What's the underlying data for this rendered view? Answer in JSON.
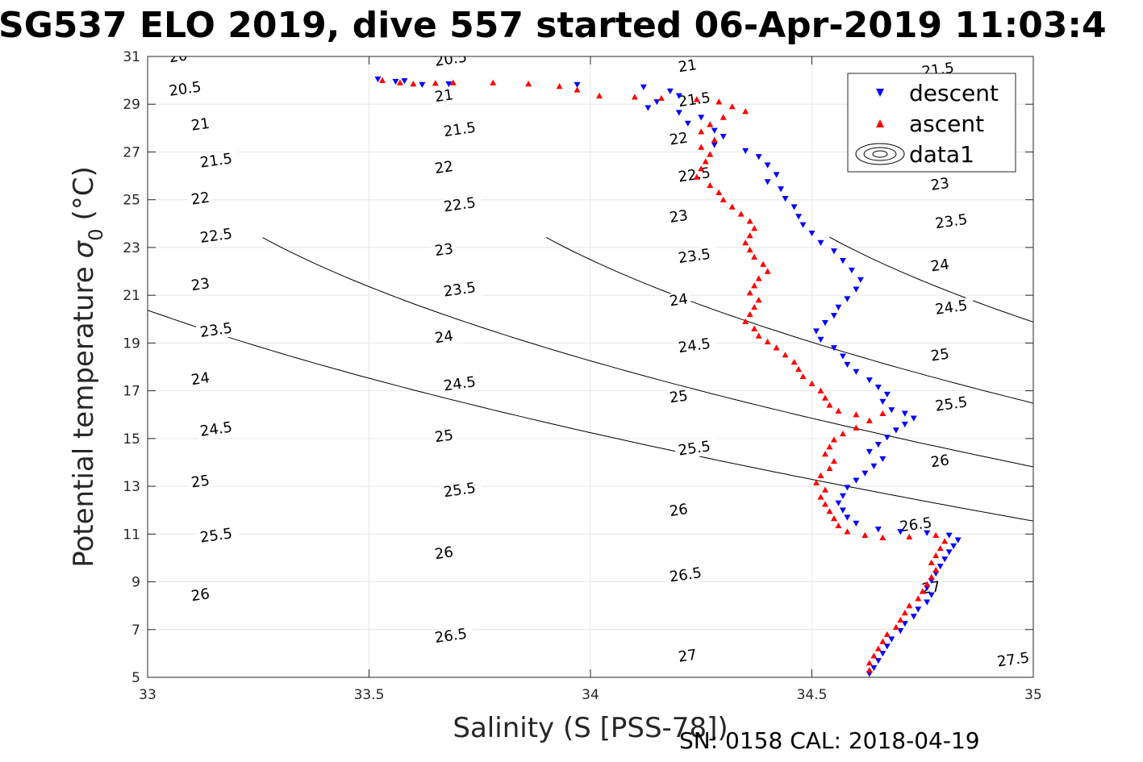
{
  "chart_data": {
    "type": "scatter",
    "title": "SG537 ELO 2019, dive 557 started 06-Apr-2019 11:03:4",
    "xlabel": "Salinity (S [PSS-78])",
    "ylabel": "Potential temperature",
    "ylabel_symbol": "σ",
    "ylabel_subscript": "0",
    "ylabel_unit": "(°C)",
    "xlim": [
      33,
      35
    ],
    "ylim": [
      5,
      31
    ],
    "xticks": [
      "33",
      "33.5",
      "34",
      "34.5",
      "35"
    ],
    "yticks": [
      "5",
      "7",
      "9",
      "11",
      "13",
      "15",
      "17",
      "19",
      "21",
      "23",
      "25",
      "27",
      "29",
      "31"
    ],
    "grid": true,
    "legend_position": "top-right",
    "legend": [
      "descent",
      "ascent",
      "data1"
    ],
    "footer_text": "SN: 0158  CAL: 2018-04-19",
    "colors": {
      "descent": "#0000ff",
      "ascent": "#ff0000",
      "contour": "#000000",
      "grid": "#e6e6e6"
    },
    "density_contours": [
      {
        "level": "20",
        "x": 33.05,
        "y": 30.75
      },
      {
        "level": "20.5",
        "x": 33.05,
        "y": 29.35
      },
      {
        "level": "20.5",
        "x": 33.65,
        "y": 30.6
      },
      {
        "level": "21",
        "x": 33.1,
        "y": 27.9
      },
      {
        "level": "21",
        "x": 33.65,
        "y": 29.1
      },
      {
        "level": "21",
        "x": 34.2,
        "y": 30.35
      },
      {
        "level": "21.5",
        "x": 33.12,
        "y": 26.35
      },
      {
        "level": "21.5",
        "x": 33.67,
        "y": 27.65
      },
      {
        "level": "21.5",
        "x": 34.2,
        "y": 28.9
      },
      {
        "level": "21.5",
        "x": 34.75,
        "y": 30.15
      },
      {
        "level": "22",
        "x": 33.1,
        "y": 24.8
      },
      {
        "level": "22",
        "x": 33.65,
        "y": 26.1
      },
      {
        "level": "22",
        "x": 34.18,
        "y": 27.3
      },
      {
        "level": "22.5",
        "x": 33.12,
        "y": 23.2
      },
      {
        "level": "22.5",
        "x": 33.67,
        "y": 24.5
      },
      {
        "level": "22.5",
        "x": 34.2,
        "y": 25.75
      },
      {
        "level": "23",
        "x": 33.1,
        "y": 21.2
      },
      {
        "level": "23",
        "x": 33.65,
        "y": 22.65
      },
      {
        "level": "23",
        "x": 34.18,
        "y": 24.05
      },
      {
        "level": "23",
        "x": 34.77,
        "y": 25.4
      },
      {
        "level": "23.5",
        "x": 33.12,
        "y": 19.25
      },
      {
        "level": "23.5",
        "x": 33.67,
        "y": 20.95
      },
      {
        "level": "23.5",
        "x": 34.2,
        "y": 22.35
      },
      {
        "level": "23.5",
        "x": 34.78,
        "y": 23.8
      },
      {
        "level": "24",
        "x": 33.1,
        "y": 17.25
      },
      {
        "level": "24",
        "x": 33.65,
        "y": 19.0
      },
      {
        "level": "24",
        "x": 34.18,
        "y": 20.55
      },
      {
        "level": "24",
        "x": 34.77,
        "y": 22.0
      },
      {
        "level": "24.5",
        "x": 33.12,
        "y": 15.1
      },
      {
        "level": "24.5",
        "x": 33.67,
        "y": 17.0
      },
      {
        "level": "24.5",
        "x": 34.2,
        "y": 18.6
      },
      {
        "level": "24.5",
        "x": 34.78,
        "y": 20.2
      },
      {
        "level": "25",
        "x": 33.1,
        "y": 12.95
      },
      {
        "level": "25",
        "x": 33.65,
        "y": 14.85
      },
      {
        "level": "25",
        "x": 34.18,
        "y": 16.5
      },
      {
        "level": "25",
        "x": 34.77,
        "y": 18.25
      },
      {
        "level": "25.5",
        "x": 33.12,
        "y": 10.65
      },
      {
        "level": "25.5",
        "x": 33.67,
        "y": 12.55
      },
      {
        "level": "25.5",
        "x": 34.2,
        "y": 14.3
      },
      {
        "level": "25.5",
        "x": 34.78,
        "y": 16.15
      },
      {
        "level": "26",
        "x": 33.1,
        "y": 8.2
      },
      {
        "level": "26",
        "x": 33.65,
        "y": 9.95
      },
      {
        "level": "26",
        "x": 34.18,
        "y": 11.75
      },
      {
        "level": "26",
        "x": 34.77,
        "y": 13.8
      },
      {
        "level": "26.5",
        "x": 33.65,
        "y": 6.45
      },
      {
        "level": "26.5",
        "x": 34.18,
        "y": 9.0
      },
      {
        "level": "26.5",
        "x": 34.7,
        "y": 11.1
      },
      {
        "level": "27",
        "x": 34.2,
        "y": 5.65
      },
      {
        "level": "27",
        "x": 34.75,
        "y": 8.5
      },
      {
        "level": "27.5",
        "x": 34.92,
        "y": 5.45
      }
    ],
    "series": [
      {
        "name": "descent",
        "marker": "triangle-down",
        "points": [
          [
            33.52,
            30.05
          ],
          [
            33.56,
            29.95
          ],
          [
            33.58,
            29.98
          ],
          [
            33.62,
            29.82
          ],
          [
            33.68,
            29.85
          ],
          [
            33.97,
            29.82
          ],
          [
            34.12,
            29.72
          ],
          [
            34.18,
            29.55
          ],
          [
            34.2,
            29.35
          ],
          [
            34.15,
            29.1
          ],
          [
            34.13,
            28.85
          ],
          [
            34.2,
            28.65
          ],
          [
            34.25,
            28.45
          ],
          [
            34.22,
            28.2
          ],
          [
            34.28,
            27.9
          ],
          [
            34.3,
            27.65
          ],
          [
            34.28,
            27.3
          ],
          [
            34.35,
            27.05
          ],
          [
            34.38,
            26.8
          ],
          [
            34.4,
            26.45
          ],
          [
            34.42,
            26.05
          ],
          [
            34.4,
            25.75
          ],
          [
            34.43,
            25.45
          ],
          [
            34.44,
            25.05
          ],
          [
            34.46,
            24.7
          ],
          [
            34.47,
            24.3
          ],
          [
            34.48,
            23.95
          ],
          [
            34.5,
            23.6
          ],
          [
            34.52,
            23.2
          ],
          [
            34.55,
            22.85
          ],
          [
            34.57,
            22.45
          ],
          [
            34.59,
            22.05
          ],
          [
            34.61,
            21.65
          ],
          [
            34.6,
            21.25
          ],
          [
            34.58,
            20.85
          ],
          [
            34.56,
            20.5
          ],
          [
            34.55,
            20.15
          ],
          [
            34.53,
            19.85
          ],
          [
            34.51,
            19.5
          ],
          [
            34.52,
            19.15
          ],
          [
            34.55,
            18.8
          ],
          [
            34.57,
            18.45
          ],
          [
            34.58,
            18.1
          ],
          [
            34.6,
            17.8
          ],
          [
            34.63,
            17.45
          ],
          [
            34.65,
            17.15
          ],
          [
            34.67,
            16.85
          ],
          [
            34.66,
            16.55
          ],
          [
            34.68,
            16.2
          ],
          [
            34.71,
            16.05
          ],
          [
            34.73,
            15.85
          ],
          [
            34.71,
            15.6
          ],
          [
            34.69,
            15.35
          ],
          [
            34.67,
            15.05
          ],
          [
            34.65,
            14.75
          ],
          [
            34.63,
            14.45
          ],
          [
            34.66,
            14.15
          ],
          [
            34.64,
            13.85
          ],
          [
            34.62,
            13.55
          ],
          [
            34.6,
            13.25
          ],
          [
            34.58,
            12.95
          ],
          [
            34.57,
            12.6
          ],
          [
            34.56,
            12.3
          ],
          [
            34.57,
            12.0
          ],
          [
            34.58,
            11.7
          ],
          [
            34.6,
            11.45
          ],
          [
            34.65,
            11.2
          ],
          [
            34.7,
            11.1
          ],
          [
            34.76,
            11.05
          ],
          [
            34.81,
            10.95
          ],
          [
            34.83,
            10.75
          ],
          [
            34.82,
            10.5
          ],
          [
            34.81,
            10.25
          ],
          [
            34.8,
            9.95
          ],
          [
            34.79,
            9.65
          ],
          [
            34.78,
            9.35
          ],
          [
            34.77,
            9.05
          ],
          [
            34.76,
            8.75
          ],
          [
            34.77,
            8.45
          ],
          [
            34.76,
            8.15
          ],
          [
            34.74,
            7.85
          ],
          [
            34.73,
            7.55
          ],
          [
            34.71,
            7.25
          ],
          [
            34.7,
            6.95
          ],
          [
            34.68,
            6.6
          ],
          [
            34.67,
            6.3
          ],
          [
            34.66,
            6.0
          ],
          [
            34.65,
            5.7
          ],
          [
            34.64,
            5.4
          ],
          [
            34.63,
            5.15
          ]
        ]
      },
      {
        "name": "ascent",
        "marker": "triangle-up",
        "points": [
          [
            33.53,
            30.0
          ],
          [
            33.57,
            29.9
          ],
          [
            33.6,
            29.85
          ],
          [
            33.65,
            29.88
          ],
          [
            33.69,
            29.9
          ],
          [
            33.78,
            29.9
          ],
          [
            33.86,
            29.85
          ],
          [
            33.93,
            29.75
          ],
          [
            33.97,
            29.6
          ],
          [
            34.02,
            29.35
          ],
          [
            34.1,
            29.3
          ],
          [
            34.16,
            29.25
          ],
          [
            34.24,
            29.2
          ],
          [
            34.29,
            29.1
          ],
          [
            34.32,
            28.9
          ],
          [
            34.35,
            28.7
          ],
          [
            34.3,
            28.45
          ],
          [
            34.27,
            28.15
          ],
          [
            34.25,
            27.85
          ],
          [
            34.28,
            27.5
          ],
          [
            34.25,
            27.2
          ],
          [
            34.27,
            26.9
          ],
          [
            34.26,
            26.6
          ],
          [
            34.25,
            26.3
          ],
          [
            34.24,
            25.95
          ],
          [
            34.27,
            25.6
          ],
          [
            34.29,
            25.3
          ],
          [
            34.3,
            25.0
          ],
          [
            34.32,
            24.7
          ],
          [
            34.34,
            24.4
          ],
          [
            34.36,
            24.1
          ],
          [
            34.37,
            23.8
          ],
          [
            34.36,
            23.5
          ],
          [
            34.35,
            23.2
          ],
          [
            34.36,
            22.9
          ],
          [
            34.37,
            22.6
          ],
          [
            34.39,
            22.3
          ],
          [
            34.4,
            22.0
          ],
          [
            34.38,
            21.7
          ],
          [
            34.37,
            21.4
          ],
          [
            34.36,
            21.1
          ],
          [
            34.38,
            20.8
          ],
          [
            34.37,
            20.5
          ],
          [
            34.36,
            20.2
          ],
          [
            34.35,
            19.9
          ],
          [
            34.37,
            19.6
          ],
          [
            34.38,
            19.3
          ],
          [
            34.4,
            19.05
          ],
          [
            34.42,
            18.8
          ],
          [
            34.44,
            18.5
          ],
          [
            34.46,
            18.2
          ],
          [
            34.47,
            17.9
          ],
          [
            34.48,
            17.6
          ],
          [
            34.5,
            17.3
          ],
          [
            34.52,
            17.0
          ],
          [
            34.53,
            16.7
          ],
          [
            34.54,
            16.4
          ],
          [
            34.56,
            16.15
          ],
          [
            34.6,
            16.0
          ],
          [
            34.66,
            16.05
          ],
          [
            34.63,
            15.75
          ],
          [
            34.6,
            15.45
          ],
          [
            34.57,
            15.2
          ],
          [
            34.55,
            14.95
          ],
          [
            34.54,
            14.65
          ],
          [
            34.53,
            14.35
          ],
          [
            34.55,
            14.05
          ],
          [
            34.54,
            13.75
          ],
          [
            34.52,
            13.45
          ],
          [
            34.51,
            13.15
          ],
          [
            34.53,
            12.85
          ],
          [
            34.52,
            12.55
          ],
          [
            34.53,
            12.25
          ],
          [
            34.54,
            11.95
          ],
          [
            34.55,
            11.65
          ],
          [
            34.56,
            11.35
          ],
          [
            34.58,
            11.1
          ],
          [
            34.62,
            10.95
          ],
          [
            34.66,
            10.85
          ],
          [
            34.72,
            10.88
          ],
          [
            34.78,
            10.95
          ],
          [
            34.8,
            10.7
          ],
          [
            34.79,
            10.4
          ],
          [
            34.78,
            10.1
          ],
          [
            34.77,
            9.8
          ],
          [
            34.78,
            9.5
          ],
          [
            34.77,
            9.2
          ],
          [
            34.76,
            8.9
          ],
          [
            34.75,
            8.6
          ],
          [
            34.74,
            8.3
          ],
          [
            34.72,
            8.0
          ],
          [
            34.71,
            7.7
          ],
          [
            34.7,
            7.4
          ],
          [
            34.69,
            7.1
          ],
          [
            34.67,
            6.8
          ],
          [
            34.66,
            6.5
          ],
          [
            34.65,
            6.2
          ],
          [
            34.64,
            5.9
          ],
          [
            34.63,
            5.6
          ],
          [
            34.63,
            5.3
          ]
        ]
      }
    ]
  }
}
